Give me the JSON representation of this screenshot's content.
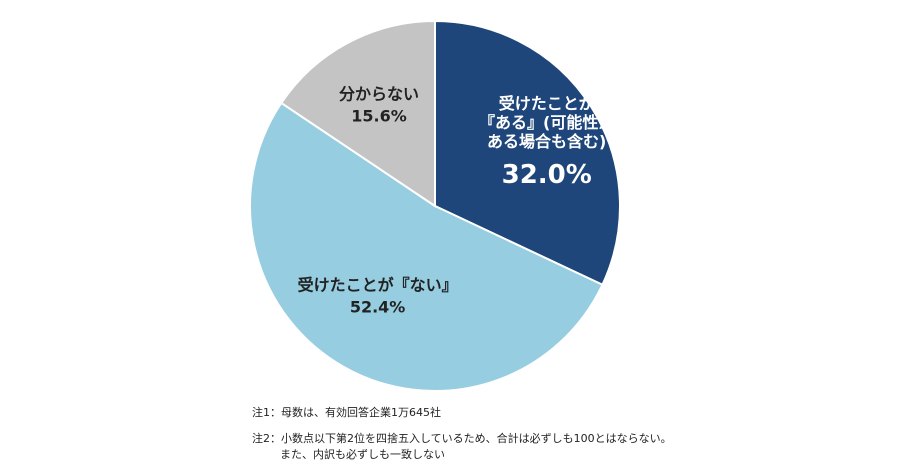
{
  "chart_data": {
    "type": "pie",
    "categories": [
      "受けたことが『ある』(可能性がある場合も含む)",
      "受けたことが『ない』",
      "分からない"
    ],
    "values": [
      32.0,
      52.4,
      15.6
    ],
    "unit": "%",
    "colors": [
      "#1f467a",
      "#96cde0",
      "#c4c4c4"
    ],
    "start_angle_deg": 0,
    "direction": "clockwise",
    "legend": "none",
    "labels": [
      {
        "lines": [
          "受けたことが",
          "『ある』(可能性が",
          "ある場合も含む)"
        ],
        "value": "32.0%"
      },
      {
        "lines": [
          "受けたことが『ない』"
        ],
        "value": "52.4%"
      },
      {
        "lines": [
          "分からない"
        ],
        "value": "15.6%"
      }
    ]
  },
  "notes": {
    "note1": "注1：母数は、有効回答企業1万645社",
    "note2_line1": "注2：小数点以下第2位を四捨五入しているため、合計は必ずしも100とはならない。",
    "note2_line2": "また、内訳も必ずしも一致しない"
  }
}
